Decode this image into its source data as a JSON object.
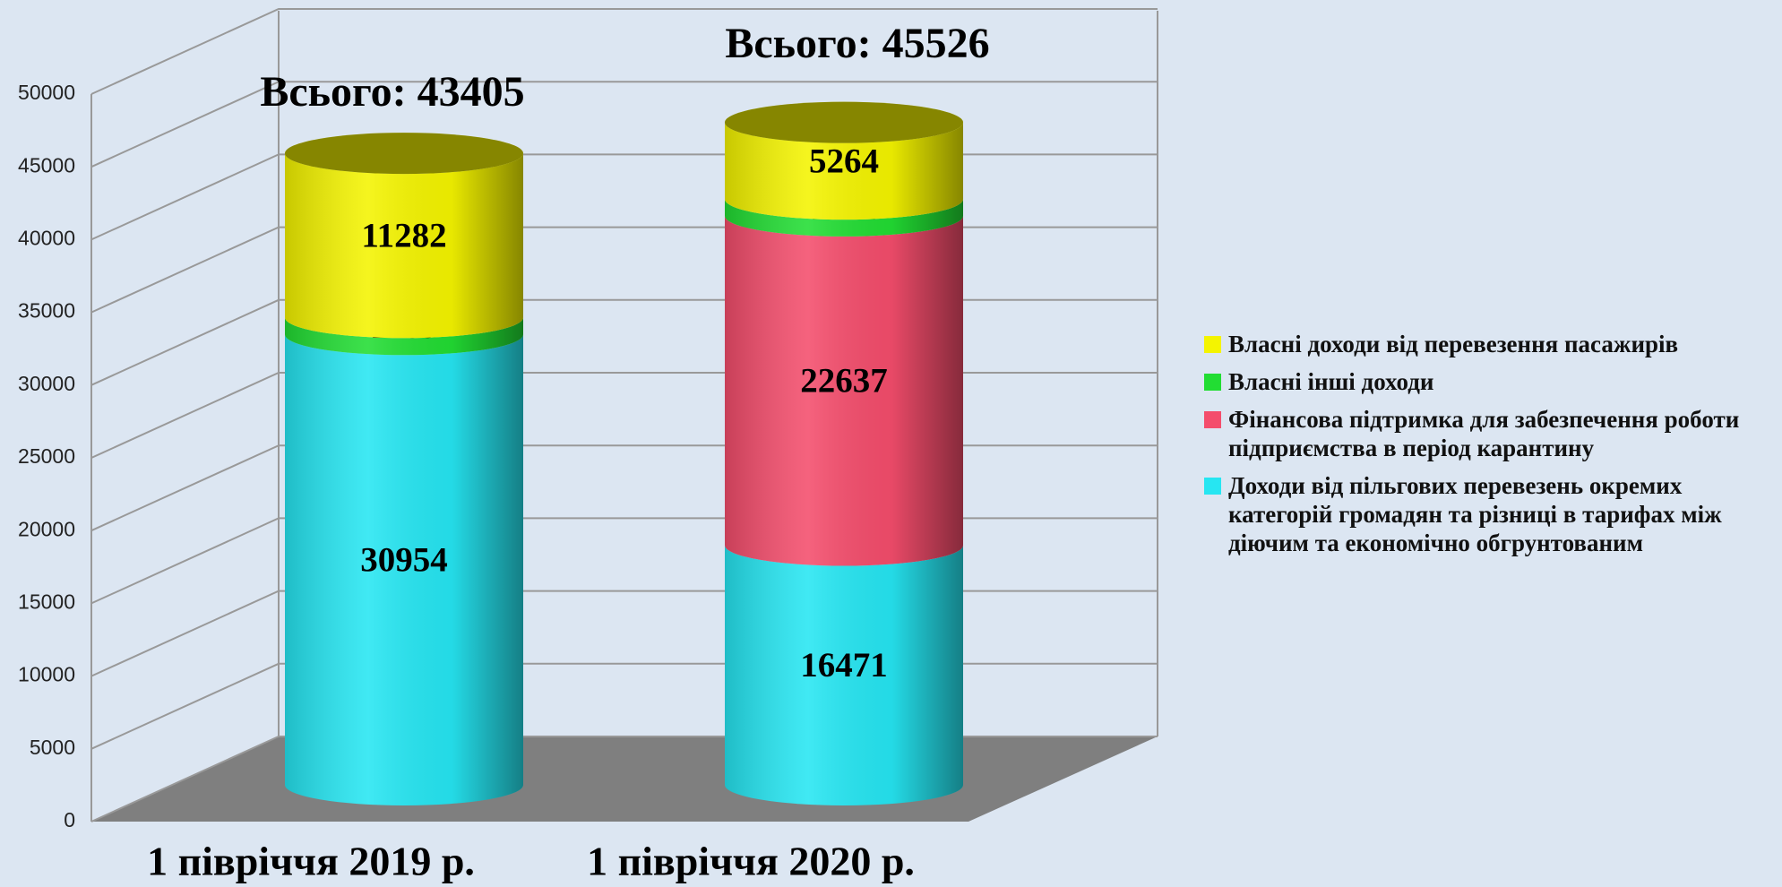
{
  "chart_data": {
    "type": "bar3d_stacked_cylinder",
    "categories": [
      "1 півріччя 2019 р.",
      "1 півріччя 2020 р."
    ],
    "series": [
      {
        "name": "Доходи від пільгових перевезень окремих категорій громадян та різниці в тарифах між діючим та економічно обгрунтованим",
        "color": "#26e6f2",
        "values": [
          30954,
          16471
        ]
      },
      {
        "name": "Фінансова підтримка для забезпечення роботи підприємства в період карантину",
        "color": "#f44d6c",
        "values": [
          null,
          22637
        ]
      },
      {
        "name": "Власні інші доходи",
        "color": "#22dd33",
        "values": [
          1169,
          1154
        ]
      },
      {
        "name": "Власні доходи від перевезення пасажирів",
        "color": "#f4f400",
        "values": [
          11282,
          5264
        ]
      }
    ],
    "annotations": [
      "Всього: 43405",
      "Всього: 45526"
    ],
    "ylim": [
      0,
      50000
    ],
    "yticks": [
      0,
      5000,
      10000,
      15000,
      20000,
      25000,
      30000,
      35000,
      40000,
      45000,
      50000
    ],
    "grid": true,
    "legend": "right"
  }
}
